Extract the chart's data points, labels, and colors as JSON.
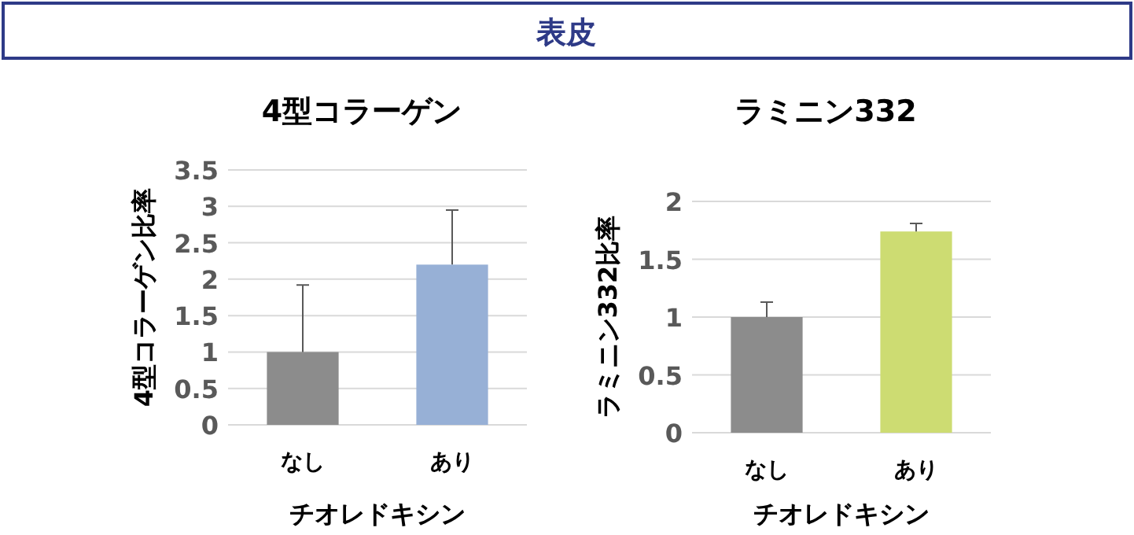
{
  "chart_data": [
    {
      "type": "other",
      "title": "表皮"
    },
    {
      "type": "bar",
      "title": "4型コラーゲン",
      "xlabel": "チオレドキシン",
      "ylabel": "4型コラーゲン比率",
      "categories": [
        "なし",
        "あり"
      ],
      "values": [
        1,
        2.2
      ],
      "colors": [
        "#8c8c8c",
        "#97b0d6"
      ],
      "errors": [
        [
          1,
          1.92
        ],
        [
          2.2,
          2.95
        ]
      ],
      "ylim": [
        0,
        3.5
      ],
      "yticks": [
        0,
        0.5,
        1,
        1.5,
        2,
        2.5,
        3,
        3.5
      ],
      "grid": "y"
    },
    {
      "type": "bar",
      "title": "ラミニン332",
      "xlabel": "チオレドキシン",
      "ylabel": "ラミニン332比率",
      "categories": [
        "なし",
        "あり"
      ],
      "values": [
        1,
        1.74
      ],
      "colors": [
        "#8c8c8c",
        "#cddc72"
      ],
      "errors": [
        [
          1,
          1.13
        ],
        [
          1.74,
          1.81
        ]
      ],
      "ylim": [
        0,
        2
      ],
      "yticks": [
        0,
        0.5,
        1,
        1.5,
        2
      ],
      "grid": "y"
    }
  ]
}
